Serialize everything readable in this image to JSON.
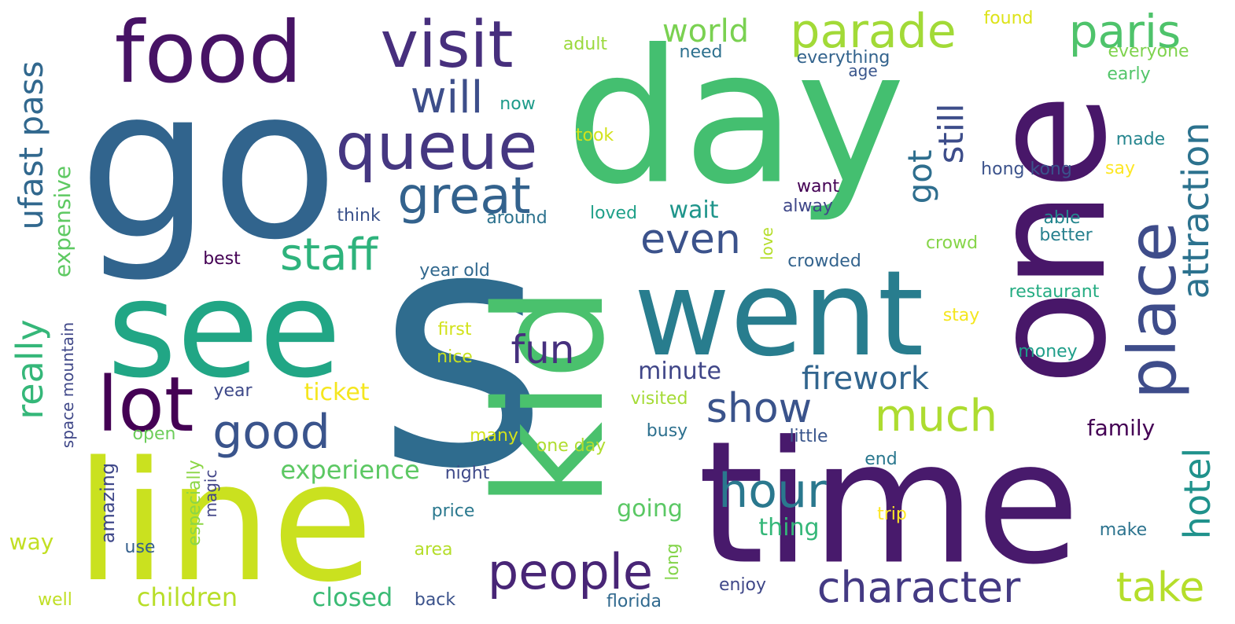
{
  "words": [
    {
      "id": "s",
      "text": "s",
      "color": "#2f6c8e"
    },
    {
      "id": "day",
      "text": "day",
      "color": "#44bf70"
    },
    {
      "id": "go",
      "text": "go",
      "color": "#31648d"
    },
    {
      "id": "time",
      "text": "time",
      "color": "#481a6c"
    },
    {
      "id": "line",
      "text": "line",
      "color": "#cae11f"
    },
    {
      "id": "one",
      "text": "one",
      "color": "#481769"
    },
    {
      "id": "kid",
      "text": "kid",
      "color": "#4ac16d"
    },
    {
      "id": "see",
      "text": "see",
      "color": "#21a685"
    },
    {
      "id": "went",
      "text": "went",
      "color": "#287d8e"
    },
    {
      "id": "food",
      "text": "food",
      "color": "#471365"
    },
    {
      "id": "visit",
      "text": "visit",
      "color": "#472f7d"
    },
    {
      "id": "queue",
      "text": "queue",
      "color": "#453781"
    },
    {
      "id": "parade",
      "text": "parade",
      "color": "#a2da37"
    },
    {
      "id": "lot",
      "text": "lot",
      "color": "#440154"
    },
    {
      "id": "place",
      "text": "place",
      "color": "#3e4c8a"
    },
    {
      "id": "paris",
      "text": "paris",
      "color": "#4ec36b"
    },
    {
      "id": "great",
      "text": "great",
      "color": "#33628d"
    },
    {
      "id": "good",
      "text": "good",
      "color": "#3a548c"
    },
    {
      "id": "staff",
      "text": "staff",
      "color": "#2eb37c"
    },
    {
      "id": "will",
      "text": "will",
      "color": "#3d4e8a"
    },
    {
      "id": "people",
      "text": "people",
      "color": "#482576"
    },
    {
      "id": "character",
      "text": "character",
      "color": "#443a83"
    },
    {
      "id": "even",
      "text": "even",
      "color": "#3b528b"
    },
    {
      "id": "hour",
      "text": "hour",
      "color": "#2a788e"
    },
    {
      "id": "show",
      "text": "show",
      "color": "#3a538b"
    },
    {
      "id": "much",
      "text": "much",
      "color": "#addc30"
    },
    {
      "id": "take",
      "text": "take",
      "color": "#b5de2b"
    },
    {
      "id": "fun",
      "text": "fun",
      "color": "#46307e"
    },
    {
      "id": "attraction",
      "text": "attraction",
      "color": "#2c728e"
    },
    {
      "id": "hotel",
      "text": "hotel",
      "color": "#20928c"
    },
    {
      "id": "really",
      "text": "really",
      "color": "#35b779"
    },
    {
      "id": "ufast pass",
      "text": "ufast pass",
      "color": "#31688e"
    },
    {
      "id": "still",
      "text": "still",
      "color": "#3d4d8a"
    },
    {
      "id": "got",
      "text": "got",
      "color": "#2e6e8e"
    },
    {
      "id": "world",
      "text": "world",
      "color": "#7ad151"
    },
    {
      "id": "firework",
      "text": "firework",
      "color": "#32658e"
    },
    {
      "id": "expensive",
      "text": "expensive",
      "color": "#5ec962"
    },
    {
      "id": "experience",
      "text": "experience",
      "color": "#5cc863"
    },
    {
      "id": "children",
      "text": "children",
      "color": "#b8de29"
    },
    {
      "id": "closed",
      "text": "closed",
      "color": "#3bbb75"
    },
    {
      "id": "wait",
      "text": "wait",
      "color": "#1f958b"
    },
    {
      "id": "minute",
      "text": "minute",
      "color": "#404688"
    },
    {
      "id": "ticket",
      "text": "ticket",
      "color": "#f5e61e"
    },
    {
      "id": "going",
      "text": "going",
      "color": "#5ac864"
    },
    {
      "id": "thing",
      "text": "thing",
      "color": "#35b779"
    },
    {
      "id": "family",
      "text": "family",
      "color": "#440154"
    },
    {
      "id": "way",
      "text": "way",
      "color": "#c2df23"
    },
    {
      "id": "amazing",
      "text": "amazing",
      "color": "#3f4889"
    },
    {
      "id": "space mountain",
      "text": "space mountain",
      "color": "#3f4788"
    },
    {
      "id": "especially",
      "text": "especially",
      "color": "#8bd646"
    },
    {
      "id": "magic",
      "text": "magic",
      "color": "#414487"
    },
    {
      "id": "food found",
      "text": "found",
      "color": "#dde318"
    },
    {
      "id": "adult",
      "text": "adult",
      "color": "#9bd93c"
    },
    {
      "id": "need",
      "text": "need",
      "color": "#2d708e"
    },
    {
      "id": "everything",
      "text": "everything",
      "color": "#33638d"
    },
    {
      "id": "everyone",
      "text": "everyone",
      "color": "#7fd34e"
    },
    {
      "id": "age",
      "text": "age",
      "color": "#39558c"
    },
    {
      "id": "early",
      "text": "early",
      "color": "#52c569"
    },
    {
      "id": "now",
      "text": "now",
      "color": "#1e9b8a"
    },
    {
      "id": "took",
      "text": "took",
      "color": "#d2e21b"
    },
    {
      "id": "made",
      "text": "made",
      "color": "#25858e"
    },
    {
      "id": "say",
      "text": "say",
      "color": "#fde725"
    },
    {
      "id": "hong kong",
      "text": "hong kong",
      "color": "#3b528b"
    },
    {
      "id": "want",
      "text": "want",
      "color": "#440154"
    },
    {
      "id": "alway",
      "text": "alway",
      "color": "#3f4788"
    },
    {
      "id": "think",
      "text": "think",
      "color": "#3b528b"
    },
    {
      "id": "around",
      "text": "around",
      "color": "#2c728e"
    },
    {
      "id": "loved",
      "text": "loved",
      "color": "#1fa088"
    },
    {
      "id": "able",
      "text": "able",
      "color": "#24868e"
    },
    {
      "id": "better",
      "text": "better",
      "color": "#27808e"
    },
    {
      "id": "best",
      "text": "best",
      "color": "#440154"
    },
    {
      "id": "love",
      "text": "love",
      "color": "#b5de2b"
    },
    {
      "id": "crowd",
      "text": "crowd",
      "color": "#86d549"
    },
    {
      "id": "crowded",
      "text": "crowded",
      "color": "#33638d"
    },
    {
      "id": "year old",
      "text": "year old",
      "color": "#31688e"
    },
    {
      "id": "restaurant",
      "text": "restaurant",
      "color": "#25ac82"
    },
    {
      "id": "stay",
      "text": "stay",
      "color": "#f4e61e"
    },
    {
      "id": "first",
      "text": "first",
      "color": "#d2e21b"
    },
    {
      "id": "nice",
      "text": "nice",
      "color": "#c8e020"
    },
    {
      "id": "money",
      "text": "money",
      "color": "#1f9e89"
    },
    {
      "id": "year",
      "text": "year",
      "color": "#3e4989"
    },
    {
      "id": "visited",
      "text": "visited",
      "color": "#a5db36"
    },
    {
      "id": "open",
      "text": "open",
      "color": "#6ccd5a"
    },
    {
      "id": "busy",
      "text": "busy",
      "color": "#2d708e"
    },
    {
      "id": "little",
      "text": "little",
      "color": "#39558c"
    },
    {
      "id": "many",
      "text": "many",
      "color": "#d2e21b"
    },
    {
      "id": "one day",
      "text": "one day",
      "color": "#b0dd2f"
    },
    {
      "id": "end",
      "text": "end",
      "color": "#2a778e"
    },
    {
      "id": "night",
      "text": "night",
      "color": "#3e4989"
    },
    {
      "id": "price",
      "text": "price",
      "color": "#2a788e"
    },
    {
      "id": "trip",
      "text": "trip",
      "color": "#fde725"
    },
    {
      "id": "make",
      "text": "make",
      "color": "#2c738e"
    },
    {
      "id": "use",
      "text": "use",
      "color": "#35608d"
    },
    {
      "id": "area",
      "text": "area",
      "color": "#b5de2b"
    },
    {
      "id": "long",
      "text": "long",
      "color": "#84d44b"
    },
    {
      "id": "enjoy",
      "text": "enjoy",
      "color": "#3f4788"
    },
    {
      "id": "well",
      "text": "well",
      "color": "#c0df25"
    },
    {
      "id": "back",
      "text": "back",
      "color": "#3b528b"
    },
    {
      "id": "florida",
      "text": "florida",
      "color": "#30698e"
    }
  ]
}
